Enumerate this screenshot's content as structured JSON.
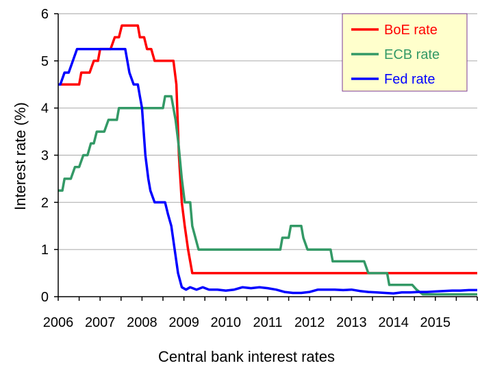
{
  "chart_data": {
    "type": "line",
    "title": "",
    "xlabel": "Central bank interest rates",
    "ylabel": "Interest rate (%)",
    "xlim": [
      2006,
      2016
    ],
    "ylim": [
      0,
      6
    ],
    "x_ticks": [
      2006,
      2007,
      2008,
      2009,
      2010,
      2011,
      2012,
      2013,
      2014,
      2015
    ],
    "x_tick_labels": [
      "2006",
      "2007",
      "2008",
      "2009",
      "2010",
      "2011",
      "2012",
      "2013",
      "2014",
      "2015"
    ],
    "y_ticks": [
      0,
      1,
      2,
      3,
      4,
      5,
      6
    ],
    "y_tick_labels": [
      "0",
      "1",
      "2",
      "3",
      "4",
      "5",
      "6"
    ],
    "grid": "horizontal",
    "legend_position": "top-right",
    "series": [
      {
        "name": "BoE rate",
        "color": "#ff0000",
        "points": [
          [
            2006.0,
            4.5
          ],
          [
            2006.5,
            4.5
          ],
          [
            2006.55,
            4.75
          ],
          [
            2006.75,
            4.75
          ],
          [
            2006.85,
            5.0
          ],
          [
            2006.95,
            5.0
          ],
          [
            2007.0,
            5.25
          ],
          [
            2007.25,
            5.25
          ],
          [
            2007.35,
            5.5
          ],
          [
            2007.45,
            5.5
          ],
          [
            2007.52,
            5.75
          ],
          [
            2007.9,
            5.75
          ],
          [
            2007.95,
            5.5
          ],
          [
            2008.05,
            5.5
          ],
          [
            2008.12,
            5.25
          ],
          [
            2008.22,
            5.25
          ],
          [
            2008.3,
            5.0
          ],
          [
            2008.75,
            5.0
          ],
          [
            2008.82,
            4.5
          ],
          [
            2008.88,
            3.0
          ],
          [
            2008.95,
            2.0
          ],
          [
            2009.02,
            1.5
          ],
          [
            2009.1,
            1.0
          ],
          [
            2009.2,
            0.5
          ],
          [
            2016.0,
            0.5
          ]
        ]
      },
      {
        "name": "ECB rate",
        "color": "#339966",
        "points": [
          [
            2006.0,
            2.25
          ],
          [
            2006.1,
            2.25
          ],
          [
            2006.15,
            2.5
          ],
          [
            2006.3,
            2.5
          ],
          [
            2006.4,
            2.75
          ],
          [
            2006.5,
            2.75
          ],
          [
            2006.6,
            3.0
          ],
          [
            2006.7,
            3.0
          ],
          [
            2006.78,
            3.25
          ],
          [
            2006.85,
            3.25
          ],
          [
            2006.92,
            3.5
          ],
          [
            2007.1,
            3.5
          ],
          [
            2007.2,
            3.75
          ],
          [
            2007.4,
            3.75
          ],
          [
            2007.45,
            4.0
          ],
          [
            2008.5,
            4.0
          ],
          [
            2008.55,
            4.25
          ],
          [
            2008.7,
            4.25
          ],
          [
            2008.8,
            3.75
          ],
          [
            2008.87,
            3.25
          ],
          [
            2008.95,
            2.5
          ],
          [
            2009.02,
            2.0
          ],
          [
            2009.15,
            2.0
          ],
          [
            2009.2,
            1.5
          ],
          [
            2009.35,
            1.0
          ],
          [
            2011.3,
            1.0
          ],
          [
            2011.35,
            1.25
          ],
          [
            2011.5,
            1.25
          ],
          [
            2011.55,
            1.5
          ],
          [
            2011.8,
            1.5
          ],
          [
            2011.85,
            1.25
          ],
          [
            2011.95,
            1.0
          ],
          [
            2012.5,
            1.0
          ],
          [
            2012.55,
            0.75
          ],
          [
            2013.3,
            0.75
          ],
          [
            2013.4,
            0.5
          ],
          [
            2013.85,
            0.5
          ],
          [
            2013.9,
            0.25
          ],
          [
            2014.45,
            0.25
          ],
          [
            2014.55,
            0.15
          ],
          [
            2014.7,
            0.05
          ],
          [
            2016.0,
            0.05
          ]
        ]
      },
      {
        "name": "Fed rate",
        "color": "#0000ff",
        "points": [
          [
            2006.0,
            4.5
          ],
          [
            2006.05,
            4.5
          ],
          [
            2006.15,
            4.75
          ],
          [
            2006.25,
            4.75
          ],
          [
            2006.35,
            5.0
          ],
          [
            2006.45,
            5.25
          ],
          [
            2007.6,
            5.25
          ],
          [
            2007.7,
            4.75
          ],
          [
            2007.8,
            4.5
          ],
          [
            2007.9,
            4.5
          ],
          [
            2007.95,
            4.25
          ],
          [
            2008.0,
            4.0
          ],
          [
            2008.08,
            3.0
          ],
          [
            2008.15,
            2.5
          ],
          [
            2008.2,
            2.25
          ],
          [
            2008.3,
            2.0
          ],
          [
            2008.45,
            2.0
          ],
          [
            2008.55,
            2.0
          ],
          [
            2008.62,
            1.75
          ],
          [
            2008.7,
            1.5
          ],
          [
            2008.78,
            1.0
          ],
          [
            2008.86,
            0.5
          ],
          [
            2008.95,
            0.2
          ],
          [
            2009.05,
            0.15
          ],
          [
            2009.15,
            0.2
          ],
          [
            2009.3,
            0.15
          ],
          [
            2009.45,
            0.2
          ],
          [
            2009.6,
            0.15
          ],
          [
            2009.8,
            0.15
          ],
          [
            2010.0,
            0.13
          ],
          [
            2010.2,
            0.15
          ],
          [
            2010.4,
            0.2
          ],
          [
            2010.6,
            0.18
          ],
          [
            2010.8,
            0.2
          ],
          [
            2011.0,
            0.18
          ],
          [
            2011.2,
            0.15
          ],
          [
            2011.4,
            0.1
          ],
          [
            2011.6,
            0.08
          ],
          [
            2011.8,
            0.08
          ],
          [
            2012.0,
            0.1
          ],
          [
            2012.2,
            0.15
          ],
          [
            2012.4,
            0.15
          ],
          [
            2012.6,
            0.15
          ],
          [
            2012.8,
            0.14
          ],
          [
            2013.0,
            0.15
          ],
          [
            2013.2,
            0.12
          ],
          [
            2013.4,
            0.1
          ],
          [
            2013.6,
            0.09
          ],
          [
            2013.8,
            0.08
          ],
          [
            2014.0,
            0.07
          ],
          [
            2014.2,
            0.09
          ],
          [
            2014.4,
            0.09
          ],
          [
            2014.6,
            0.1
          ],
          [
            2014.8,
            0.1
          ],
          [
            2015.0,
            0.11
          ],
          [
            2015.2,
            0.12
          ],
          [
            2015.4,
            0.13
          ],
          [
            2015.6,
            0.13
          ],
          [
            2015.8,
            0.14
          ],
          [
            2016.0,
            0.14
          ]
        ]
      }
    ]
  }
}
